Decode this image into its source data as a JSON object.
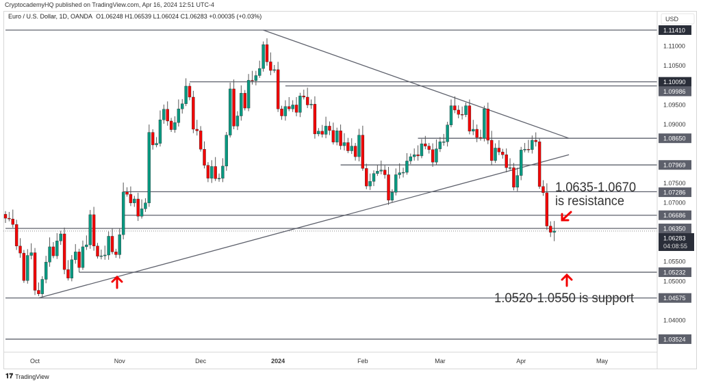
{
  "header": {
    "published": "CryptocademyHQ published on TradingView.com, Apr 16, 2024 12:51 UTC-4",
    "symbol": "Euro / U.S. Dollar, 1D, OANDA",
    "ohlc": "O1.06248  H1.06539  L1.06024  C1.06283  +0.00035 (+0.03%)"
  },
  "footer": {
    "brand": "TradingView",
    "logo_icon": "tradingview-logo-icon"
  },
  "chart_data": {
    "type": "candlestick",
    "title": "Euro / U.S. Dollar, 1D, OANDA",
    "currency": "USD",
    "ylim": [
      1.0305,
      1.1185
    ],
    "grid": false,
    "colors": {
      "up": "#089981",
      "down": "#f20000",
      "line": "#5d606b",
      "annotation": "#f20000"
    },
    "x_ticks": [
      "Oct",
      "Nov",
      "Dec",
      "2024",
      "Feb",
      "Mar",
      "Apr",
      "May"
    ],
    "x_tick_index": [
      8,
      31,
      53,
      74,
      97,
      118,
      140,
      162
    ],
    "y_ticks": [
      "1.11000",
      "1.10500",
      "1.09500",
      "1.09000",
      "1.07500",
      "1.07000",
      "1.05500",
      "1.05000",
      "1.04000"
    ],
    "closes": [
      1.0661,
      1.0659,
      1.0645,
      1.059,
      1.0572,
      1.0502,
      1.0566,
      1.0573,
      1.0477,
      1.0468,
      1.0505,
      1.0549,
      1.0588,
      1.0565,
      1.0603,
      1.0621,
      1.053,
      1.0508,
      1.0555,
      1.0575,
      1.0535,
      1.0588,
      1.0593,
      1.067,
      1.059,
      1.0564,
      1.0565,
      1.0567,
      1.0615,
      1.0575,
      1.0568,
      1.0619,
      1.0728,
      1.0722,
      1.07,
      1.071,
      1.0666,
      1.0685,
      1.07,
      1.088,
      1.0848,
      1.0852,
      1.0912,
      1.0939,
      1.0909,
      1.0887,
      1.0905,
      1.094,
      1.0953,
      1.0998,
      1.097,
      1.0888,
      1.0884,
      1.0837,
      1.0796,
      1.0763,
      1.0793,
      1.0762,
      1.0763,
      1.0794,
      1.0873,
      1.0991,
      1.0896,
      1.0922,
      1.098,
      1.0942,
      1.1013,
      1.1012,
      1.1025,
      1.1043,
      1.1104,
      1.106,
      1.1038,
      1.104,
      1.094,
      1.0922,
      1.0946,
      1.094,
      1.095,
      1.0931,
      1.0973,
      1.097,
      1.095,
      1.0952,
      1.0876,
      1.0883,
      1.0875,
      1.0896,
      1.0885,
      1.0855,
      1.0884,
      1.0846,
      1.0854,
      1.0833,
      1.0845,
      1.0818,
      1.0873,
      1.0788,
      1.0743,
      1.0755,
      1.0775,
      1.0781,
      1.0784,
      1.0772,
      1.0707,
      1.0727,
      1.0772,
      1.0777,
      1.0778,
      1.0807,
      1.0818,
      1.0823,
      1.082,
      1.0851,
      1.0845,
      1.0836,
      1.0804,
      1.0838,
      1.0856,
      1.0856,
      1.0899,
      1.0948,
      1.0937,
      1.0926,
      1.0925,
      1.0948,
      1.0883,
      1.0888,
      1.0867,
      1.0865,
      1.094,
      1.086,
      1.0808,
      1.084,
      1.083,
      1.0823,
      1.079,
      1.079,
      1.074,
      1.077,
      1.0835,
      1.0837,
      1.0836,
      1.086,
      1.0856,
      1.0742,
      1.0726,
      1.0641,
      1.0625,
      1.06283
    ],
    "last_candle": {
      "open": 1.06248,
      "high": 1.06539,
      "low": 1.06024,
      "close": 1.06283,
      "change": "+0.00035 (+0.03%)"
    },
    "current_price": {
      "label": "1.06283",
      "countdown": "04:08:55"
    },
    "levels": [
      {
        "label": "1.11410",
        "price": 1.1141,
        "from_index": 0,
        "dark": true
      },
      {
        "label": "1.10090",
        "price": 1.1009,
        "from_index": 50,
        "dark": true
      },
      {
        "label": "1.09986",
        "price": 1.09986,
        "from_index": 76,
        "dark": false
      },
      {
        "label": "1.08650",
        "price": 1.0865,
        "from_index": 112,
        "dark": false
      },
      {
        "label": "1.07969",
        "price": 1.07969,
        "from_index": 91,
        "dark": false
      },
      {
        "label": "1.07286",
        "price": 1.07286,
        "from_index": 32,
        "dark": false
      },
      {
        "label": "1.06686",
        "price": 1.06686,
        "from_index": 32,
        "dark": false
      },
      {
        "label": "1.06350",
        "price": 1.0635,
        "from_index": 0,
        "dark": false
      },
      {
        "label": "1.05232",
        "price": 1.05232,
        "from_index": 20,
        "dark": false
      },
      {
        "label": "1.04575",
        "price": 1.04575,
        "from_index": 0,
        "dark": false
      },
      {
        "label": "1.03524",
        "price": 1.03524,
        "from_index": 0,
        "dark": false
      }
    ],
    "trendlines": [
      {
        "from": [
          70,
          1.1141
        ],
        "to": [
          153,
          1.0865
        ]
      },
      {
        "from": [
          9,
          1.04575
        ],
        "to": [
          153,
          1.0823
        ]
      }
    ],
    "annotations": [
      {
        "lines": [
          "1.0635-1.0670",
          "is resistance"
        ]
      },
      {
        "lines": [
          "1.0520-1.0550 is support"
        ]
      }
    ]
  }
}
